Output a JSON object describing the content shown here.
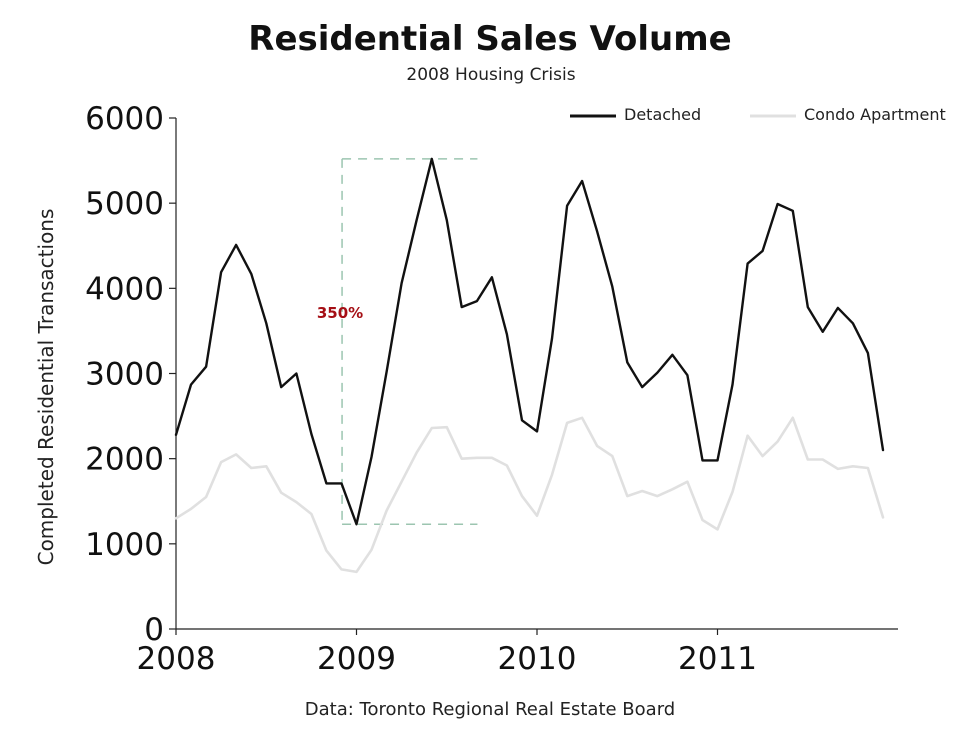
{
  "chart_data": {
    "type": "line",
    "title": "Residential Sales Volume",
    "subtitle": "2008 Housing Crisis",
    "ylabel": "Completed Residential Transactions",
    "xlabel": "",
    "source": "Data: Toronto Regional Real Estate Board",
    "ylim": [
      0,
      6000
    ],
    "yticks": [
      "0",
      "1000",
      "2000",
      "3000",
      "4000",
      "5000",
      "6000"
    ],
    "xlim": [
      2008,
      2012
    ],
    "xticks": [
      "2008",
      "2009",
      "2010",
      "2011"
    ],
    "grid": false,
    "legend_position": "top-right",
    "annotation": {
      "label": "350%",
      "color": "#a50f15",
      "x_range": [
        2008.92,
        2009.67
      ],
      "y_range": [
        1230,
        5520
      ]
    },
    "series": [
      {
        "name": "Detached",
        "color": "#111111",
        "x": [
          2008.0,
          2008.083,
          2008.167,
          2008.25,
          2008.333,
          2008.417,
          2008.5,
          2008.583,
          2008.667,
          2008.75,
          2008.833,
          2008.917,
          2009.0,
          2009.083,
          2009.167,
          2009.25,
          2009.333,
          2009.417,
          2009.5,
          2009.583,
          2009.667,
          2009.75,
          2009.833,
          2009.917,
          2010.0,
          2010.083,
          2010.167,
          2010.25,
          2010.333,
          2010.417,
          2010.5,
          2010.583,
          2010.667,
          2010.75,
          2010.833,
          2010.917,
          2011.0,
          2011.083,
          2011.167,
          2011.25,
          2011.333,
          2011.417,
          2011.5,
          2011.583,
          2011.667,
          2011.75,
          2011.833,
          2011.917
        ],
        "values": [
          2280,
          2870,
          3080,
          4190,
          4510,
          4170,
          3590,
          2840,
          3000,
          2290,
          1710,
          1710,
          1230,
          2020,
          3020,
          4060,
          4800,
          5520,
          4800,
          3780,
          3850,
          4130,
          3460,
          2450,
          2320,
          3410,
          4970,
          5260,
          4670,
          4020,
          3130,
          2840,
          3010,
          3220,
          2980,
          1980,
          1980,
          2870,
          4290,
          4440,
          4990,
          4910,
          3780,
          3490,
          3770,
          3590,
          3240,
          2100
        ]
      },
      {
        "name": "Condo Apartment",
        "color": "#e0e0e0",
        "x": [
          2008.0,
          2008.083,
          2008.167,
          2008.25,
          2008.333,
          2008.417,
          2008.5,
          2008.583,
          2008.667,
          2008.75,
          2008.833,
          2008.917,
          2009.0,
          2009.083,
          2009.167,
          2009.25,
          2009.333,
          2009.417,
          2009.5,
          2009.583,
          2009.667,
          2009.75,
          2009.833,
          2009.917,
          2010.0,
          2010.083,
          2010.167,
          2010.25,
          2010.333,
          2010.417,
          2010.5,
          2010.583,
          2010.667,
          2010.75,
          2010.833,
          2010.917,
          2011.0,
          2011.083,
          2011.167,
          2011.25,
          2011.333,
          2011.417,
          2011.5,
          2011.583,
          2011.667,
          2011.75,
          2011.833,
          2011.917
        ],
        "values": [
          1300,
          1410,
          1550,
          1960,
          2050,
          1890,
          1910,
          1600,
          1490,
          1350,
          920,
          700,
          670,
          930,
          1390,
          1730,
          2070,
          2360,
          2370,
          2000,
          2010,
          2010,
          1920,
          1560,
          1330,
          1810,
          2420,
          2480,
          2150,
          2030,
          1560,
          1620,
          1560,
          1640,
          1730,
          1280,
          1170,
          1610,
          2270,
          2030,
          2200,
          2480,
          1990,
          1990,
          1880,
          1910,
          1890,
          1310
        ]
      }
    ]
  }
}
